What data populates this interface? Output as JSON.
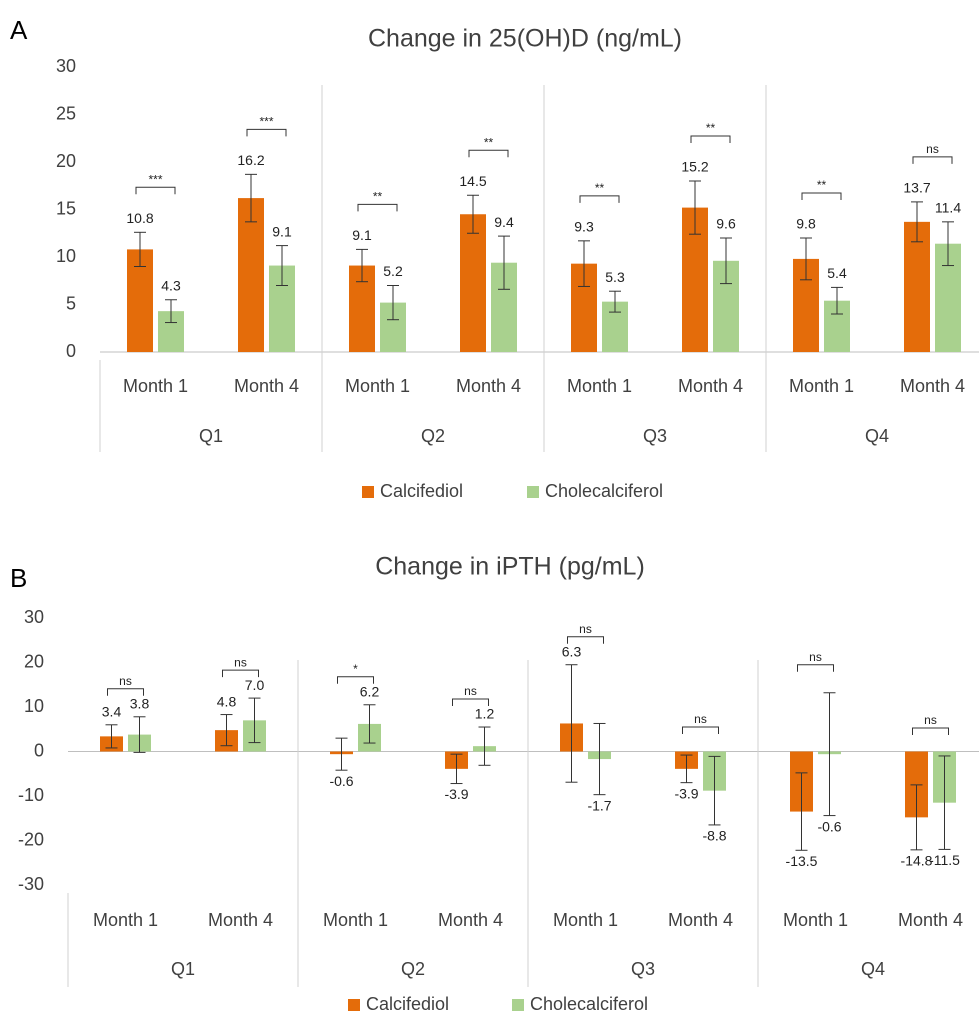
{
  "chart_data": [
    {
      "type": "bar",
      "panel": "A",
      "title": "Change in 25(OH)D (ng/mL)",
      "groups": [
        "Q1",
        "Q2",
        "Q3",
        "Q4"
      ],
      "categories": [
        "Month 1",
        "Month 4",
        "Month 1",
        "Month 4",
        "Month 1",
        "Month 4",
        "Month 1",
        "Month 4"
      ],
      "series": [
        {
          "name": "Calcifediol",
          "color": "#e46c0a",
          "values": [
            10.8,
            16.2,
            9.1,
            14.5,
            9.3,
            15.2,
            9.8,
            13.7
          ],
          "errors": [
            1.8,
            2.5,
            1.7,
            2.0,
            2.4,
            2.8,
            2.2,
            2.1
          ],
          "value_labels": [
            "10.8",
            "16.2",
            "9.1",
            "14.5",
            "9.3",
            "15.2",
            "9.8",
            "13.7"
          ]
        },
        {
          "name": "Cholecalciferol",
          "color": "#a9d18e",
          "values": [
            4.3,
            9.1,
            5.2,
            9.4,
            5.3,
            9.6,
            5.4,
            11.4
          ],
          "errors": [
            1.2,
            2.1,
            1.8,
            2.8,
            1.1,
            2.4,
            1.4,
            2.3
          ],
          "value_labels": [
            "4.3",
            "9.1",
            "5.2",
            "9.4",
            "5.3",
            "9.6",
            "5.4",
            "11.4"
          ]
        }
      ],
      "significance": [
        "***",
        "***",
        "**",
        "**",
        "**",
        "**",
        "**",
        "ns"
      ],
      "ylim": [
        0,
        30
      ],
      "yticks": [
        0,
        5,
        10,
        15,
        20,
        25,
        30
      ]
    },
    {
      "type": "bar",
      "panel": "B",
      "title": "Change in iPTH (pg/mL)",
      "groups": [
        "Q1",
        "Q2",
        "Q3",
        "Q4"
      ],
      "categories": [
        "Month 1",
        "Month 4",
        "Month 1",
        "Month 4",
        "Month 1",
        "Month 4",
        "Month 1",
        "Month 4"
      ],
      "series": [
        {
          "name": "Calcifediol",
          "color": "#e46c0a",
          "values": [
            3.4,
            4.8,
            -0.6,
            -3.9,
            6.3,
            -3.9,
            -13.5,
            -14.8
          ],
          "errors": [
            2.6,
            3.5,
            3.6,
            3.3,
            13.2,
            3.1,
            8.7,
            7.3
          ],
          "value_labels": [
            "3.4",
            "4.8",
            "-0.6",
            "-3.9",
            "6.3",
            "-3.9",
            "-13.5",
            "-14.8"
          ]
        },
        {
          "name": "Cholecalciferol",
          "color": "#a9d18e",
          "values": [
            3.8,
            7.0,
            6.2,
            1.2,
            -1.7,
            -8.8,
            -0.6,
            -11.5
          ],
          "errors": [
            4.0,
            5.0,
            4.3,
            4.3,
            8.0,
            7.7,
            13.8,
            10.5
          ],
          "value_labels": [
            "3.8",
            "7.0",
            "6.2",
            "1.2",
            "-1.7",
            "-8.8",
            "-0.6",
            "-11.5"
          ]
        }
      ],
      "significance": [
        "ns",
        "ns",
        "*",
        "ns",
        "ns",
        "ns",
        "ns",
        "ns"
      ],
      "ylim": [
        -30,
        30
      ],
      "yticks": [
        -30,
        -20,
        -10,
        0,
        10,
        20,
        30
      ]
    }
  ]
}
